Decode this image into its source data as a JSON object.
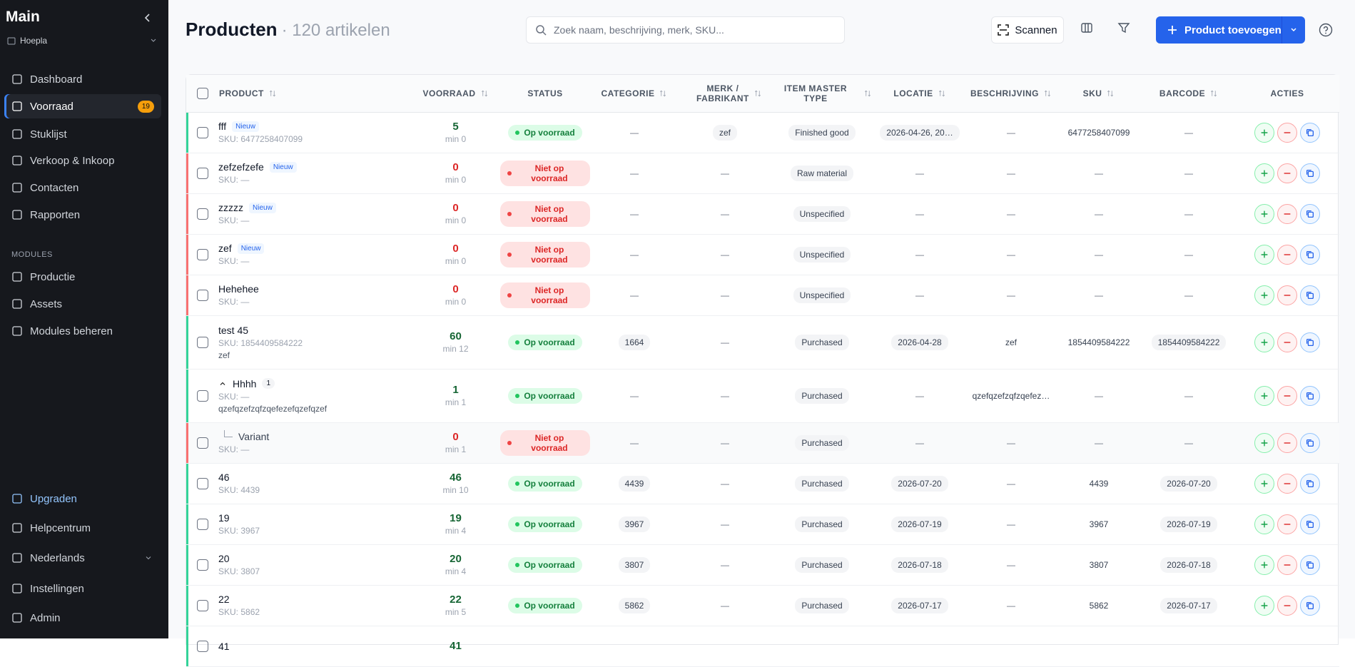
{
  "sidebar": {
    "title": "Main",
    "workspace": "Hoepla",
    "nav": [
      {
        "label": "Dashboard"
      },
      {
        "label": "Voorraad",
        "badge": "19",
        "active": true
      },
      {
        "label": "Stuklijst"
      },
      {
        "label": "Verkoop & Inkoop"
      },
      {
        "label": "Contacten"
      },
      {
        "label": "Rapporten"
      }
    ],
    "modules_heading": "MODULES",
    "modules": [
      {
        "label": "Productie"
      },
      {
        "label": "Assets"
      },
      {
        "label": "Modules beheren"
      }
    ],
    "bottom": [
      {
        "label": "Upgraden",
        "highlight": true
      },
      {
        "label": "Helpcentrum"
      },
      {
        "label": "Nederlands",
        "dropdown": true
      },
      {
        "label": "Instellingen"
      },
      {
        "label": "Admin"
      }
    ]
  },
  "header": {
    "title": "Producten",
    "count": "· 120 artikelen",
    "search_placeholder": "Zoek naam, beschrijving, merk, SKU...",
    "scan_button": "Scannen",
    "add_button": "Product toevoegen"
  },
  "table": {
    "empty": "—",
    "columns": [
      "PRODUCT",
      "VOORRAAD",
      "STATUS",
      "CATEGORIE",
      "MERK / FABRIKANT",
      "ITEM MASTER TYPE",
      "LOCATIE",
      "BESCHRIJVING",
      "SKU",
      "BARCODE",
      "ACTIES"
    ],
    "rows": [
      {
        "name": "fff",
        "tag": "Nieuw",
        "sku_line": "SKU: 6477258407099",
        "stock": "5",
        "min": "min 0",
        "status": "Op voorraad",
        "categorie": "—",
        "merk": "zef",
        "type": "Finished good",
        "locatie": "2026-04-26, 20…",
        "beschrijving": "—",
        "sku": "6477258407099",
        "barcode": "—"
      },
      {
        "name": "zefzefzefe",
        "tag": "Nieuw",
        "sku_line": "SKU: —",
        "stock": "0",
        "min": "min 0",
        "status": "Niet op voorraad",
        "categorie": "—",
        "merk": "—",
        "type": "Raw material",
        "locatie": "—",
        "beschrijving": "—",
        "sku": "—",
        "barcode": "—"
      },
      {
        "name": "zzzzz",
        "tag": "Nieuw",
        "sku_line": "SKU: —",
        "stock": "0",
        "min": "min 0",
        "status": "Niet op voorraad",
        "categorie": "—",
        "merk": "—",
        "type": "Unspecified",
        "locatie": "—",
        "beschrijving": "—",
        "sku": "—",
        "barcode": "—"
      },
      {
        "name": "zef",
        "tag": "Nieuw",
        "sku_line": "SKU: —",
        "stock": "0",
        "min": "min 0",
        "status": "Niet op voorraad",
        "categorie": "—",
        "merk": "—",
        "type": "Unspecified",
        "locatie": "—",
        "beschrijving": "—",
        "sku": "—",
        "barcode": "—"
      },
      {
        "name": "Hehehee",
        "sku_line": "SKU: —",
        "stock": "0",
        "min": "min 0",
        "status": "Niet op voorraad",
        "categorie": "—",
        "merk": "—",
        "type": "Unspecified",
        "locatie": "—",
        "beschrijving": "—",
        "sku": "—",
        "barcode": "—"
      },
      {
        "name": "test 45",
        "sku_line": "SKU: 1854409584222",
        "note": "zef",
        "stock": "60",
        "min": "min 12",
        "status": "Op voorraad",
        "categorie": "1664",
        "merk": "—",
        "type": "Purchased",
        "locatie": "2026-04-28",
        "beschrijving": "zef",
        "sku": "1854409584222",
        "barcode": "1854409584222"
      },
      {
        "name": "Hhhh",
        "group_count": "1",
        "sku_line": "SKU: —",
        "note": "qzefqzefzqfzqefezefqzefqzef",
        "stock": "1",
        "min": "min 1",
        "status": "Op voorraad",
        "categorie": "—",
        "merk": "—",
        "type": "Purchased",
        "locatie": "—",
        "beschrijving": "qzefqzefzqfzqefez…",
        "sku": "—",
        "barcode": "—"
      },
      {
        "name": "Variant",
        "variant": true,
        "sku_line": "SKU: —",
        "stock": "0",
        "min": "min 1",
        "status": "Niet op voorraad",
        "categorie": "—",
        "merk": "—",
        "type": "Purchased",
        "locatie": "—",
        "beschrijving": "—",
        "sku": "—",
        "barcode": "—"
      },
      {
        "name": "46",
        "sku_line": "SKU: 4439",
        "stock": "46",
        "min": "min 10",
        "status": "Op voorraad",
        "categorie": "4439",
        "merk": "—",
        "type": "Purchased",
        "locatie": "2026-07-20",
        "beschrijving": "—",
        "sku": "4439",
        "barcode": "2026-07-20"
      },
      {
        "name": "19",
        "sku_line": "SKU: 3967",
        "stock": "19",
        "min": "min 4",
        "status": "Op voorraad",
        "categorie": "3967",
        "merk": "—",
        "type": "Purchased",
        "locatie": "2026-07-19",
        "beschrijving": "—",
        "sku": "3967",
        "barcode": "2026-07-19"
      },
      {
        "name": "20",
        "sku_line": "SKU: 3807",
        "stock": "20",
        "min": "min 4",
        "status": "Op voorraad",
        "categorie": "3807",
        "merk": "—",
        "type": "Purchased",
        "locatie": "2026-07-18",
        "beschrijving": "—",
        "sku": "3807",
        "barcode": "2026-07-18"
      },
      {
        "name": "22",
        "sku_line": "SKU: 5862",
        "stock": "22",
        "min": "min 5",
        "status": "Op voorraad",
        "categorie": "5862",
        "merk": "—",
        "type": "Purchased",
        "locatie": "2026-07-17",
        "beschrijving": "—",
        "sku": "5862",
        "barcode": "2026-07-17"
      },
      {
        "name": "41",
        "stock": "41"
      }
    ]
  }
}
